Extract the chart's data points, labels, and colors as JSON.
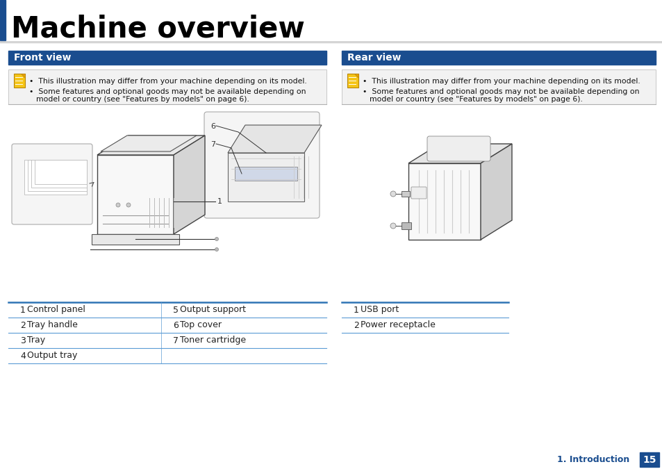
{
  "title": "Machine overview",
  "title_fontsize": 30,
  "title_color": "#000000",
  "title_bar_color": "#1a4d8f",
  "bg_color": "#ffffff",
  "header_bg": "#1a4d8f",
  "header_text_color": "#ffffff",
  "header_fontsize": 10,
  "section_left_title": "Front view",
  "section_right_title": "Rear view",
  "note_line1": "This illustration may differ from your machine depending on its model.",
  "note_line2a": "Some features and optional goods may not be available depending on",
  "note_line2b": "model or country (see \"Features by models\" on page 6).",
  "front_table": [
    [
      "1",
      "Control panel",
      "5",
      "Output support"
    ],
    [
      "2",
      "Tray handle",
      "6",
      "Top cover"
    ],
    [
      "3",
      "Tray",
      "7",
      "Toner cartridge"
    ],
    [
      "4",
      "Output tray",
      "",
      ""
    ]
  ],
  "rear_table": [
    [
      "1",
      "USB port"
    ],
    [
      "2",
      "Power receptacle"
    ]
  ],
  "table_line_color": "#5b9bd5",
  "table_top_color": "#2e74b5",
  "table_fontsize": 9,
  "footer_text": "1. Introduction",
  "footer_page": "15",
  "footer_bg": "#1a4d8f",
  "footer_text_color": "#1a4d8f",
  "footer_page_color": "#ffffff",
  "note_bg": "#f2f2f2",
  "note_border": "#c8c8c8",
  "separator_color1": "#b0b0b0",
  "separator_color2": "#e0e0e0"
}
